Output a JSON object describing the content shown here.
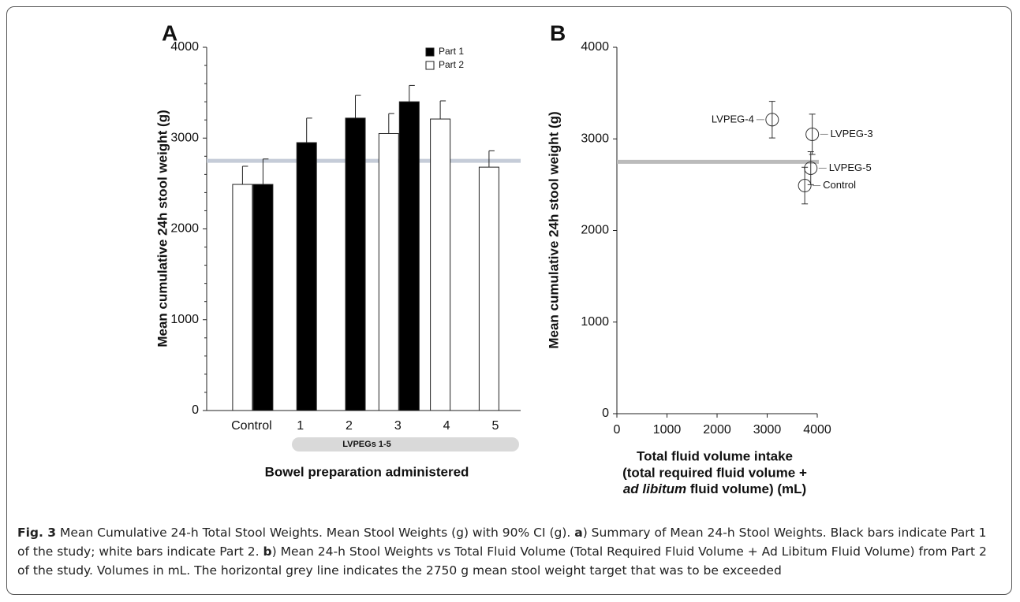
{
  "chart_data": [
    {
      "type": "bar",
      "panel": "A",
      "ylabel": "Mean cumulative 24h stool weight (g)",
      "xlabel": "Bowel preparation administered",
      "group_label": "LVPEGs 1-5",
      "categories": [
        "Control",
        "1",
        "2",
        "3",
        "4",
        "5"
      ],
      "series": [
        {
          "name": "Part 1",
          "color": "#000000",
          "values": [
            2490,
            2950,
            3220,
            3400,
            null,
            null
          ],
          "errors": [
            280,
            270,
            250,
            180,
            null,
            null
          ]
        },
        {
          "name": "Part 2",
          "color": "#ffffff",
          "values": [
            2490,
            null,
            null,
            3050,
            3210,
            2680
          ],
          "errors": [
            200,
            null,
            null,
            220,
            200,
            180
          ]
        }
      ],
      "ylim": [
        0,
        4000
      ],
      "yticks": [
        0,
        1000,
        2000,
        3000,
        4000
      ],
      "reference_line": {
        "value": 2750,
        "color": "#c5ccd8"
      },
      "legend": "top-right"
    },
    {
      "type": "scatter",
      "panel": "B",
      "ylabel": "Mean cumulative 24h stool weight (g)",
      "xlabel": [
        "Total fluid volume intake",
        "(total required fluid volume +",
        [
          "ad libitum",
          " fluid volume) (mL)"
        ]
      ],
      "labels": [
        "LVPEG-4",
        "LVPEG-3",
        "LVPEG-5",
        "Control"
      ],
      "x": [
        3100,
        3900,
        3870,
        3750
      ],
      "values": [
        3210,
        3050,
        2680,
        2490
      ],
      "errors": [
        200,
        220,
        180,
        200
      ],
      "xlim": [
        0,
        4000
      ],
      "xticks": [
        0,
        1000,
        2000,
        3000,
        4000
      ],
      "ylim": [
        0,
        4000
      ],
      "yticks": [
        0,
        1000,
        2000,
        3000,
        4000
      ],
      "reference_line": {
        "value": 2750,
        "color": "#bbbbbb"
      }
    }
  ],
  "caption": [
    {
      "text": "Fig. 3",
      "style": "bold"
    },
    {
      "text": " Mean Cumulative 24-h Total Stool Weights. Mean Stool Weights (g) with 90% CI (g). ",
      "style": "normal"
    },
    {
      "text": "a",
      "style": "bold"
    },
    {
      "text": ") Summary of Mean 24-h Stool Weights. Black bars indicate Part 1 of the study; white bars indicate Part 2. ",
      "style": "normal"
    },
    {
      "text": "b",
      "style": "bold"
    },
    {
      "text": ") Mean 24-h Stool Weights vs Total Fluid Volume (Total Required Fluid Volume + Ad Libitum Fluid Volume) from Part 2 of the study. Volumes in mL. The horizontal grey line indicates the 2750 g mean stool weight target that was to be exceeded",
      "style": "normal"
    }
  ]
}
